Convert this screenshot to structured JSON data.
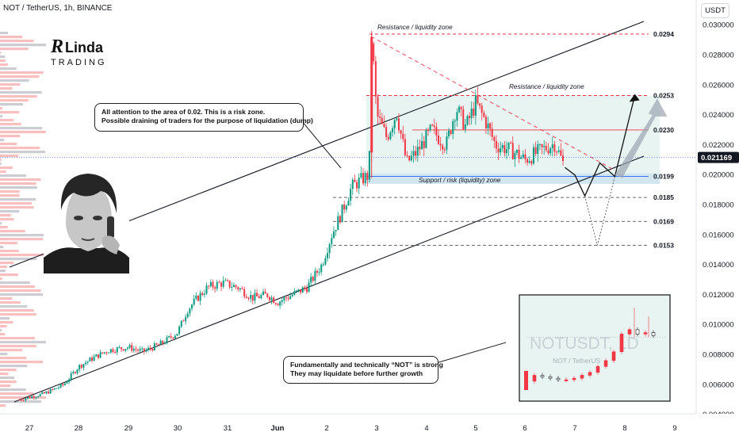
{
  "header": {
    "ticker": "NOT / TetherUS, 1h, BINANCE",
    "currency": "USDT"
  },
  "logo": {
    "text_top": "RLinda",
    "text_bottom": "TRADING"
  },
  "callouts": {
    "risk_zone": {
      "line1": "All attention to the area of 0.02. This is a risk zone.",
      "line2": "Possible draining of traders for the purpose of liquidation (dump)"
    },
    "strong": {
      "line1": "Fundamentally and technically “NOT” is strong",
      "line2": "They may liquidate before further growth"
    }
  },
  "inset": {
    "watermark": "NOTUSDT, 1D",
    "subtitle": "NOT / TetherUS"
  },
  "chart_data": {
    "type": "candlestick",
    "symbol": "NOT / TetherUS",
    "timeframe": "1h",
    "exchange": "BINANCE",
    "x_ticks": [
      "27",
      "28",
      "29",
      "30",
      "31",
      "Jun",
      "2",
      "3",
      "4",
      "5",
      "6",
      "7",
      "8",
      "9"
    ],
    "y_ticks": [
      "0.030000",
      "0.028000",
      "0.026000",
      "0.024000",
      "0.022000",
      "0.020000",
      "0.018000",
      "0.016000",
      "0.014000",
      "0.012000",
      "0.010000",
      "0.008000",
      "0.006000",
      "0.004000"
    ],
    "y_range": [
      0.0039,
      0.0303
    ],
    "current_price": "0.021169",
    "levels": [
      {
        "value": 0.0294,
        "label": "0.0294",
        "style": "dashed",
        "color": "#f23645"
      },
      {
        "value": 0.0253,
        "label": "0.0253",
        "style": "dashed",
        "color": "#f23645"
      },
      {
        "value": 0.023,
        "label": "0.0230",
        "style": "solid",
        "color": "#f23645"
      },
      {
        "value": 0.0199,
        "label": "0.0199",
        "style": "solid",
        "color": "#2962ff"
      },
      {
        "value": 0.0185,
        "label": "0.0185",
        "style": "dashed",
        "color": "#555555"
      },
      {
        "value": 0.0169,
        "label": "0.0169",
        "style": "dashed",
        "color": "#555555"
      },
      {
        "value": 0.0153,
        "label": "0.0153",
        "style": "dashed",
        "color": "#555555"
      }
    ],
    "zones": [
      {
        "label": "Resistance / liquidity zone",
        "near": 0.0294
      },
      {
        "label": "Resistance / liquidity zone",
        "near": 0.0253
      },
      {
        "label": "Support / risk (liquidity) zone",
        "near": 0.0199
      }
    ],
    "price_path": [
      [
        26.8,
        0.005
      ],
      [
        27.3,
        0.0054
      ],
      [
        27.7,
        0.006
      ],
      [
        28.0,
        0.0072
      ],
      [
        28.3,
        0.0078
      ],
      [
        28.6,
        0.0083
      ],
      [
        29.0,
        0.0085
      ],
      [
        29.3,
        0.0082
      ],
      [
        29.7,
        0.0088
      ],
      [
        30.0,
        0.0095
      ],
      [
        30.2,
        0.011
      ],
      [
        30.4,
        0.0118
      ],
      [
        30.6,
        0.0125
      ],
      [
        30.9,
        0.0128
      ],
      [
        31.2,
        0.0125
      ],
      [
        31.5,
        0.0118
      ],
      [
        31.8,
        0.012
      ],
      [
        32.0,
        0.0115
      ],
      [
        32.3,
        0.012
      ],
      [
        32.6,
        0.0125
      ],
      [
        32.9,
        0.014
      ],
      [
        33.1,
        0.016
      ],
      [
        33.3,
        0.0175
      ],
      [
        33.5,
        0.0192
      ],
      [
        33.7,
        0.0197
      ],
      [
        33.85,
        0.02
      ],
      [
        33.9,
        0.0294
      ],
      [
        34.0,
        0.024
      ],
      [
        34.2,
        0.0225
      ],
      [
        34.4,
        0.0242
      ],
      [
        34.6,
        0.0208
      ],
      [
        34.8,
        0.0215
      ],
      [
        35.1,
        0.023
      ],
      [
        35.4,
        0.022
      ],
      [
        35.6,
        0.0245
      ],
      [
        35.8,
        0.0232
      ],
      [
        36.0,
        0.0248
      ],
      [
        36.2,
        0.0236
      ],
      [
        36.4,
        0.022
      ],
      [
        36.6,
        0.0218
      ],
      [
        36.8,
        0.0215
      ],
      [
        37.0,
        0.021
      ],
      [
        37.3,
        0.0216
      ],
      [
        37.6,
        0.0221
      ],
      [
        37.8,
        0.0205
      ]
    ],
    "projection": [
      [
        37.8,
        0.0205
      ],
      [
        38.0,
        0.02
      ],
      [
        38.2,
        0.0186
      ],
      [
        38.5,
        0.0208
      ],
      [
        38.8,
        0.0199
      ],
      [
        39.2,
        0.0253
      ]
    ]
  }
}
